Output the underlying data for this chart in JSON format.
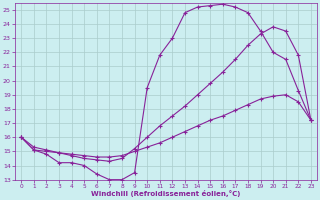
{
  "background_color": "#cceef0",
  "grid_color": "#aacccc",
  "line_color": "#882299",
  "xlabel": "Windchill (Refroidissement éolien,°C)",
  "xlim": [
    -0.5,
    23.5
  ],
  "ylim": [
    13,
    25.5
  ],
  "yticks": [
    13,
    14,
    15,
    16,
    17,
    18,
    19,
    20,
    21,
    22,
    23,
    24,
    25
  ],
  "xticks": [
    0,
    1,
    2,
    3,
    4,
    5,
    6,
    7,
    8,
    9,
    10,
    11,
    12,
    13,
    14,
    15,
    16,
    17,
    18,
    19,
    20,
    21,
    22,
    23
  ],
  "line1_x": [
    0,
    1,
    2,
    3,
    4,
    5,
    6,
    7,
    8,
    9,
    10,
    11,
    12,
    13,
    14,
    15,
    16,
    17,
    18,
    19,
    20,
    21,
    22,
    23
  ],
  "line1_y": [
    16.0,
    15.1,
    14.8,
    14.2,
    14.2,
    14.0,
    13.4,
    13.0,
    13.0,
    13.5,
    19.5,
    21.8,
    23.0,
    24.8,
    25.2,
    25.3,
    25.4,
    25.2,
    24.8,
    23.5,
    22.0,
    21.5,
    19.3,
    17.2
  ],
  "line2_x": [
    0,
    1,
    2,
    3,
    4,
    5,
    6,
    7,
    8,
    9,
    10,
    11,
    12,
    13,
    14,
    15,
    16,
    17,
    18,
    19,
    20,
    21,
    22,
    23
  ],
  "line2_y": [
    16.0,
    15.3,
    15.1,
    14.9,
    14.7,
    14.5,
    14.4,
    14.3,
    14.5,
    15.2,
    16.0,
    16.8,
    17.5,
    18.2,
    19.0,
    19.8,
    20.6,
    21.5,
    22.5,
    23.3,
    23.8,
    23.5,
    21.8,
    17.2
  ],
  "line3_x": [
    0,
    1,
    2,
    3,
    4,
    5,
    6,
    7,
    8,
    9,
    10,
    11,
    12,
    13,
    14,
    15,
    16,
    17,
    18,
    19,
    20,
    21,
    22,
    23
  ],
  "line3_y": [
    16.0,
    15.1,
    15.0,
    14.9,
    14.8,
    14.7,
    14.6,
    14.6,
    14.7,
    15.0,
    15.3,
    15.6,
    16.0,
    16.4,
    16.8,
    17.2,
    17.5,
    17.9,
    18.3,
    18.7,
    18.9,
    19.0,
    18.5,
    17.2
  ]
}
